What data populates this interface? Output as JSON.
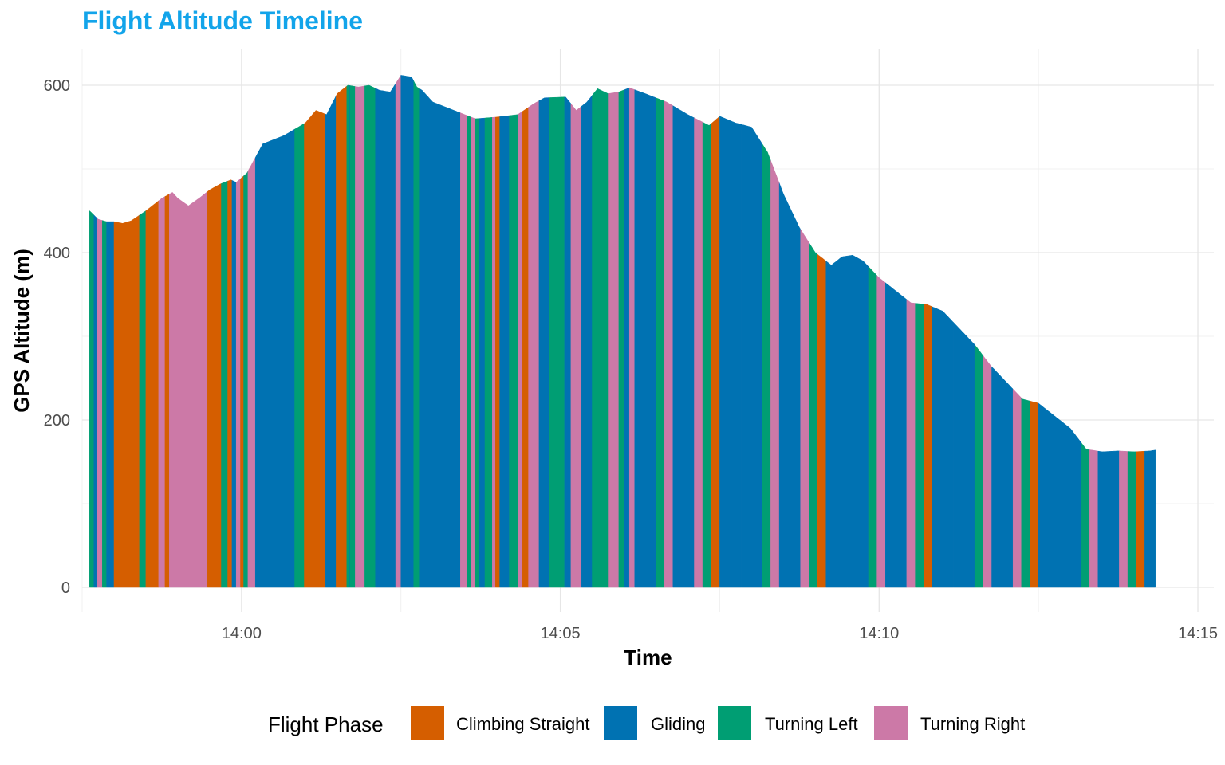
{
  "chart_data": {
    "type": "area",
    "title": "Flight Altitude Timeline",
    "title_color": "#12A4EA",
    "xlabel": "Time",
    "ylabel": "GPS Altitude (m)",
    "x_unit": "time of day (HH:MM:SS)",
    "xlim": [
      "13:57:30",
      "14:15:15"
    ],
    "ylim": [
      0,
      630
    ],
    "x_ticks": [
      "14:00",
      "14:05",
      "14:10",
      "14:15"
    ],
    "y_ticks": [
      0,
      200,
      400,
      600
    ],
    "grid": true,
    "legend_position": "bottom",
    "legend_title": "Flight Phase",
    "phases": [
      {
        "name": "Climbing Straight",
        "color": "#D55E00"
      },
      {
        "name": "Gliding",
        "color": "#0072B2"
      },
      {
        "name": "Turning Left",
        "color": "#009E73"
      },
      {
        "name": "Turning Right",
        "color": "#CC79A7"
      }
    ],
    "altitude_profile": {
      "time": [
        "13:57:37",
        "13:57:45",
        "13:57:53",
        "13:58:00",
        "13:58:08",
        "13:58:16",
        "13:58:30",
        "13:58:45",
        "13:58:55",
        "13:59:00",
        "13:59:10",
        "13:59:20",
        "13:59:30",
        "13:59:40",
        "13:59:50",
        "13:59:55",
        "14:00:05",
        "14:00:20",
        "14:00:40",
        "14:01:00",
        "14:01:10",
        "14:01:20",
        "14:01:30",
        "14:01:40",
        "14:01:50",
        "14:02:00",
        "14:02:10",
        "14:02:20",
        "14:02:30",
        "14:02:40",
        "14:02:45",
        "14:02:50",
        "14:03:00",
        "14:03:20",
        "14:03:40",
        "14:04:00",
        "14:04:20",
        "14:04:35",
        "14:04:45",
        "14:05:05",
        "14:05:15",
        "14:05:25",
        "14:05:35",
        "14:05:45",
        "14:05:55",
        "14:06:05",
        "14:06:20",
        "14:06:40",
        "14:07:00",
        "14:07:20",
        "14:07:30",
        "14:07:45",
        "14:08:00",
        "14:08:15",
        "14:08:30",
        "14:08:45",
        "14:09:00",
        "14:09:15",
        "14:09:25",
        "14:09:35",
        "14:09:45",
        "14:10:00",
        "14:10:15",
        "14:10:30",
        "14:10:45",
        "14:11:00",
        "14:11:15",
        "14:11:30",
        "14:11:45",
        "14:12:00",
        "14:12:15",
        "14:12:30",
        "14:12:45",
        "14:13:00",
        "14:13:15",
        "14:13:30",
        "14:13:45",
        "14:14:00",
        "14:14:15",
        "14:14:20"
      ],
      "altitude": [
        450,
        440,
        437,
        437,
        435,
        438,
        450,
        465,
        472,
        465,
        456,
        465,
        475,
        482,
        487,
        484,
        495,
        530,
        540,
        555,
        570,
        565,
        590,
        600,
        598,
        600,
        594,
        592,
        612,
        610,
        598,
        594,
        580,
        570,
        560,
        562,
        565,
        578,
        585,
        586,
        570,
        580,
        596,
        590,
        592,
        597,
        590,
        580,
        565,
        552,
        563,
        555,
        550,
        520,
        470,
        430,
        400,
        385,
        395,
        397,
        390,
        370,
        355,
        340,
        338,
        330,
        310,
        290,
        265,
        245,
        225,
        220,
        205,
        190,
        165,
        162,
        163,
        162,
        163,
        164
      ]
    },
    "phase_segments": [
      {
        "start": "13:57:37",
        "end": "13:57:41",
        "phase": "Turning Left"
      },
      {
        "start": "13:57:41",
        "end": "13:57:44",
        "phase": "Gliding"
      },
      {
        "start": "13:57:44",
        "end": "13:57:49",
        "phase": "Turning Right"
      },
      {
        "start": "13:57:49",
        "end": "13:57:53",
        "phase": "Turning Left"
      },
      {
        "start": "13:57:53",
        "end": "13:58:00",
        "phase": "Gliding"
      },
      {
        "start": "13:58:00",
        "end": "13:58:24",
        "phase": "Climbing Straight"
      },
      {
        "start": "13:58:24",
        "end": "13:58:30",
        "phase": "Turning Left"
      },
      {
        "start": "13:58:30",
        "end": "13:58:42",
        "phase": "Climbing Straight"
      },
      {
        "start": "13:58:42",
        "end": "13:58:48",
        "phase": "Turning Right"
      },
      {
        "start": "13:58:48",
        "end": "13:58:52",
        "phase": "Climbing Straight"
      },
      {
        "start": "13:58:52",
        "end": "13:59:28",
        "phase": "Turning Right"
      },
      {
        "start": "13:59:28",
        "end": "13:59:41",
        "phase": "Climbing Straight"
      },
      {
        "start": "13:59:41",
        "end": "13:59:47",
        "phase": "Turning Left"
      },
      {
        "start": "13:59:47",
        "end": "13:59:51",
        "phase": "Climbing Straight"
      },
      {
        "start": "13:59:51",
        "end": "13:59:55",
        "phase": "Gliding"
      },
      {
        "start": "13:59:55",
        "end": "13:59:59",
        "phase": "Turning Right"
      },
      {
        "start": "13:59:59",
        "end": "14:00:02",
        "phase": "Climbing Straight"
      },
      {
        "start": "14:00:02",
        "end": "14:00:06",
        "phase": "Turning Left"
      },
      {
        "start": "14:00:06",
        "end": "14:00:13",
        "phase": "Turning Right"
      },
      {
        "start": "14:00:13",
        "end": "14:00:50",
        "phase": "Gliding"
      },
      {
        "start": "14:00:50",
        "end": "14:00:59",
        "phase": "Turning Left"
      },
      {
        "start": "14:00:59",
        "end": "14:01:19",
        "phase": "Climbing Straight"
      },
      {
        "start": "14:01:19",
        "end": "14:01:29",
        "phase": "Gliding"
      },
      {
        "start": "14:01:29",
        "end": "14:01:39",
        "phase": "Climbing Straight"
      },
      {
        "start": "14:01:39",
        "end": "14:01:41",
        "phase": "Turning Left"
      },
      {
        "start": "14:01:41",
        "end": "14:01:42",
        "phase": "Gliding"
      },
      {
        "start": "14:01:42",
        "end": "14:01:47",
        "phase": "Turning Left"
      },
      {
        "start": "14:01:47",
        "end": "14:01:56",
        "phase": "Turning Right"
      },
      {
        "start": "14:01:56",
        "end": "14:02:06",
        "phase": "Turning Left"
      },
      {
        "start": "14:02:06",
        "end": "14:02:25",
        "phase": "Gliding"
      },
      {
        "start": "14:02:25",
        "end": "14:02:30",
        "phase": "Turning Right"
      },
      {
        "start": "14:02:30",
        "end": "14:02:42",
        "phase": "Gliding"
      },
      {
        "start": "14:02:42",
        "end": "14:02:48",
        "phase": "Turning Left"
      },
      {
        "start": "14:02:48",
        "end": "14:03:26",
        "phase": "Gliding"
      },
      {
        "start": "14:03:26",
        "end": "14:03:32",
        "phase": "Turning Right"
      },
      {
        "start": "14:03:32",
        "end": "14:03:36",
        "phase": "Turning Left"
      },
      {
        "start": "14:03:36",
        "end": "14:03:40",
        "phase": "Turning Right"
      },
      {
        "start": "14:03:40",
        "end": "14:03:44",
        "phase": "Turning Left"
      },
      {
        "start": "14:03:44",
        "end": "14:03:49",
        "phase": "Gliding"
      },
      {
        "start": "14:03:49",
        "end": "14:03:56",
        "phase": "Turning Left"
      },
      {
        "start": "14:03:56",
        "end": "14:03:59",
        "phase": "Turning Right"
      },
      {
        "start": "14:03:59",
        "end": "14:04:03",
        "phase": "Climbing Straight"
      },
      {
        "start": "14:04:03",
        "end": "14:04:12",
        "phase": "Gliding"
      },
      {
        "start": "14:04:12",
        "end": "14:04:20",
        "phase": "Turning Left"
      },
      {
        "start": "14:04:20",
        "end": "14:04:24",
        "phase": "Turning Right"
      },
      {
        "start": "14:04:24",
        "end": "14:04:30",
        "phase": "Climbing Straight"
      },
      {
        "start": "14:04:30",
        "end": "14:04:40",
        "phase": "Turning Right"
      },
      {
        "start": "14:04:40",
        "end": "14:04:50",
        "phase": "Gliding"
      },
      {
        "start": "14:04:50",
        "end": "14:05:04",
        "phase": "Turning Left"
      },
      {
        "start": "14:05:04",
        "end": "14:05:10",
        "phase": "Gliding"
      },
      {
        "start": "14:05:10",
        "end": "14:05:20",
        "phase": "Turning Right"
      },
      {
        "start": "14:05:20",
        "end": "14:05:30",
        "phase": "Gliding"
      },
      {
        "start": "14:05:30",
        "end": "14:05:45",
        "phase": "Turning Left"
      },
      {
        "start": "14:05:45",
        "end": "14:05:55",
        "phase": "Turning Right"
      },
      {
        "start": "14:05:55",
        "end": "14:06:00",
        "phase": "Turning Left"
      },
      {
        "start": "14:06:00",
        "end": "14:06:05",
        "phase": "Gliding"
      },
      {
        "start": "14:06:05",
        "end": "14:06:10",
        "phase": "Turning Right"
      }
    ]
  }
}
